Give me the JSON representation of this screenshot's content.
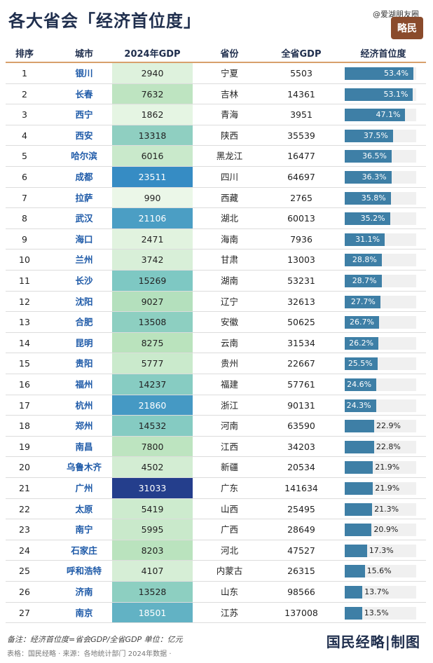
{
  "title": "各大省会「经济首位度」",
  "watermark_top": "@爱湖朋友圈",
  "logo_text": "略民",
  "columns": [
    "排序",
    "城市",
    "2024年GDP",
    "省份",
    "全省GDP",
    "经济首位度"
  ],
  "chart_data": {
    "type": "table",
    "rows": [
      {
        "rank": "1",
        "city": "银川",
        "gdp": 2940,
        "province": "宁夏",
        "province_gdp": 5503,
        "primacy": 53.4,
        "primacy_label": "53.4%"
      },
      {
        "rank": "2",
        "city": "长春",
        "gdp": 7632,
        "province": "吉林",
        "province_gdp": 14361,
        "primacy": 53.1,
        "primacy_label": "53.1%"
      },
      {
        "rank": "3",
        "city": "西宁",
        "gdp": 1862,
        "province": "青海",
        "province_gdp": 3951,
        "primacy": 47.1,
        "primacy_label": "47.1%"
      },
      {
        "rank": "4",
        "city": "西安",
        "gdp": 13318,
        "province": "陕西",
        "province_gdp": 35539,
        "primacy": 37.5,
        "primacy_label": "37.5%"
      },
      {
        "rank": "5",
        "city": "哈尔滨",
        "gdp": 6016,
        "province": "黑龙江",
        "province_gdp": 16477,
        "primacy": 36.5,
        "primacy_label": "36.5%"
      },
      {
        "rank": "6",
        "city": "成都",
        "gdp": 23511,
        "province": "四川",
        "province_gdp": 64697,
        "primacy": 36.3,
        "primacy_label": "36.3%"
      },
      {
        "rank": "7",
        "city": "拉萨",
        "gdp": 990,
        "province": "西藏",
        "province_gdp": 2765,
        "primacy": 35.8,
        "primacy_label": "35.8%"
      },
      {
        "rank": "8",
        "city": "武汉",
        "gdp": 21106,
        "province": "湖北",
        "province_gdp": 60013,
        "primacy": 35.2,
        "primacy_label": "35.2%"
      },
      {
        "rank": "9",
        "city": "海口",
        "gdp": 2471,
        "province": "海南",
        "province_gdp": 7936,
        "primacy": 31.1,
        "primacy_label": "31.1%"
      },
      {
        "rank": "10",
        "city": "兰州",
        "gdp": 3742,
        "province": "甘肃",
        "province_gdp": 13003,
        "primacy": 28.8,
        "primacy_label": "28.8%"
      },
      {
        "rank": "11",
        "city": "长沙",
        "gdp": 15269,
        "province": "湖南",
        "province_gdp": 53231,
        "primacy": 28.7,
        "primacy_label": "28.7%"
      },
      {
        "rank": "12",
        "city": "沈阳",
        "gdp": 9027,
        "province": "辽宁",
        "province_gdp": 32613,
        "primacy": 27.7,
        "primacy_label": "27.7%"
      },
      {
        "rank": "13",
        "city": "合肥",
        "gdp": 13508,
        "province": "安徽",
        "province_gdp": 50625,
        "primacy": 26.7,
        "primacy_label": "26.7%"
      },
      {
        "rank": "14",
        "city": "昆明",
        "gdp": 8275,
        "province": "云南",
        "province_gdp": 31534,
        "primacy": 26.2,
        "primacy_label": "26.2%"
      },
      {
        "rank": "15",
        "city": "贵阳",
        "gdp": 5777,
        "province": "贵州",
        "province_gdp": 22667,
        "primacy": 25.5,
        "primacy_label": "25.5%"
      },
      {
        "rank": "16",
        "city": "福州",
        "gdp": 14237,
        "province": "福建",
        "province_gdp": 57761,
        "primacy": 24.6,
        "primacy_label": "24.6%"
      },
      {
        "rank": "17",
        "city": "杭州",
        "gdp": 21860,
        "province": "浙江",
        "province_gdp": 90131,
        "primacy": 24.3,
        "primacy_label": "24.3%"
      },
      {
        "rank": "18",
        "city": "郑州",
        "gdp": 14532,
        "province": "河南",
        "province_gdp": 63590,
        "primacy": 22.9,
        "primacy_label": "22.9%"
      },
      {
        "rank": "19",
        "city": "南昌",
        "gdp": 7800,
        "province": "江西",
        "province_gdp": 34203,
        "primacy": 22.8,
        "primacy_label": "22.8%"
      },
      {
        "rank": "20",
        "city": "乌鲁木齐",
        "gdp": 4502,
        "province": "新疆",
        "province_gdp": 20534,
        "primacy": 21.9,
        "primacy_label": "21.9%"
      },
      {
        "rank": "21",
        "city": "广州",
        "gdp": 31033,
        "province": "广东",
        "province_gdp": 141634,
        "primacy": 21.9,
        "primacy_label": "21.9%"
      },
      {
        "rank": "22",
        "city": "太原",
        "gdp": 5419,
        "province": "山西",
        "province_gdp": 25495,
        "primacy": 21.3,
        "primacy_label": "21.3%"
      },
      {
        "rank": "23",
        "city": "南宁",
        "gdp": 5995,
        "province": "广西",
        "province_gdp": 28649,
        "primacy": 20.9,
        "primacy_label": "20.9%"
      },
      {
        "rank": "24",
        "city": "石家庄",
        "gdp": 8203,
        "province": "河北",
        "province_gdp": 47527,
        "primacy": 17.3,
        "primacy_label": "17.3%"
      },
      {
        "rank": "25",
        "city": "呼和浩特",
        "gdp": 4107,
        "province": "内蒙古",
        "province_gdp": 26315,
        "primacy": 15.6,
        "primacy_label": "15.6%"
      },
      {
        "rank": "26",
        "city": "济南",
        "gdp": 13528,
        "province": "山东",
        "province_gdp": 98566,
        "primacy": 13.7,
        "primacy_label": "13.7%"
      },
      {
        "rank": "27",
        "city": "南京",
        "gdp": 18501,
        "province": "江苏",
        "province_gdp": 137008,
        "primacy": 13.5,
        "primacy_label": "13.5%"
      }
    ],
    "primacy_axis_max": 60
  },
  "footer_note": "备注：经济首位度=省会GDP/全省GDP 单位：亿元",
  "footer_source": "表格：国民经略 · 来源：各地统计部门 2024年数据 ·",
  "brand": "国民经略|制图",
  "colors": {
    "title": "#1f2e4d",
    "city": "#1e5aa8",
    "bar": "#3e7fa6",
    "header_rule": "#d8a06c",
    "logo_bg": "#8a4b2c"
  }
}
